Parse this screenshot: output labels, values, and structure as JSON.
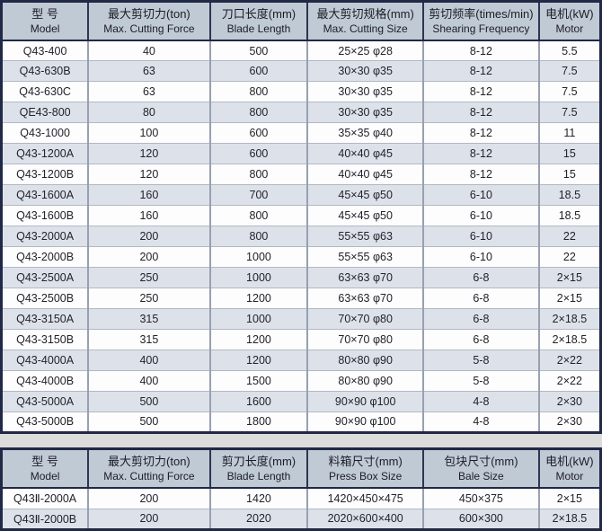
{
  "colors": {
    "page_background": "#dcdcdc",
    "table_border_navy": "#202945",
    "header_background": "#c0cad5",
    "row_background": "#fdfdfe",
    "row_alt_background": "#dde2ea",
    "grid_vertical": "#98a0b0",
    "grid_horizontal": "#b2b8c2",
    "text": "#22222a"
  },
  "table1": {
    "headers": [
      {
        "zh": "型 号",
        "en": "Model"
      },
      {
        "zh": "最大剪切力(ton)",
        "en": "Max. Cutting Force"
      },
      {
        "zh": "刀口长度(mm)",
        "en": "Blade Length"
      },
      {
        "zh": "最大剪切规格(mm)",
        "en": "Max. Cutting Size"
      },
      {
        "zh": "剪切频率(times/min)",
        "en": "Shearing Frequency"
      },
      {
        "zh": "电机(kW)",
        "en": "Motor"
      }
    ],
    "rows": [
      [
        "Q43-400",
        "40",
        "500",
        "25×25 φ28",
        "8-12",
        "5.5"
      ],
      [
        "Q43-630B",
        "63",
        "600",
        "30×30 φ35",
        "8-12",
        "7.5"
      ],
      [
        "Q43-630C",
        "63",
        "800",
        "30×30 φ35",
        "8-12",
        "7.5"
      ],
      [
        "QE43-800",
        "80",
        "800",
        "30×30 φ35",
        "8-12",
        "7.5"
      ],
      [
        "Q43-1000",
        "100",
        "600",
        "35×35 φ40",
        "8-12",
        "11"
      ],
      [
        "Q43-1200A",
        "120",
        "600",
        "40×40 φ45",
        "8-12",
        "15"
      ],
      [
        "Q43-1200B",
        "120",
        "800",
        "40×40 φ45",
        "8-12",
        "15"
      ],
      [
        "Q43-1600A",
        "160",
        "700",
        "45×45 φ50",
        "6-10",
        "18.5"
      ],
      [
        "Q43-1600B",
        "160",
        "800",
        "45×45 φ50",
        "6-10",
        "18.5"
      ],
      [
        "Q43-2000A",
        "200",
        "800",
        "55×55 φ63",
        "6-10",
        "22"
      ],
      [
        "Q43-2000B",
        "200",
        "1000",
        "55×55 φ63",
        "6-10",
        "22"
      ],
      [
        "Q43-2500A",
        "250",
        "1000",
        "63×63 φ70",
        "6-8",
        "2×15"
      ],
      [
        "Q43-2500B",
        "250",
        "1200",
        "63×63 φ70",
        "6-8",
        "2×15"
      ],
      [
        "Q43-3150A",
        "315",
        "1000",
        "70×70 φ80",
        "6-8",
        "2×18.5"
      ],
      [
        "Q43-3150B",
        "315",
        "1200",
        "70×70 φ80",
        "6-8",
        "2×18.5"
      ],
      [
        "Q43-4000A",
        "400",
        "1200",
        "80×80 φ90",
        "5-8",
        "2×22"
      ],
      [
        "Q43-4000B",
        "400",
        "1500",
        "80×80 φ90",
        "5-8",
        "2×22"
      ],
      [
        "Q43-5000A",
        "500",
        "1600",
        "90×90 φ100",
        "4-8",
        "2×30"
      ],
      [
        "Q43-5000B",
        "500",
        "1800",
        "90×90 φ100",
        "4-8",
        "2×30"
      ]
    ]
  },
  "table2": {
    "headers": [
      {
        "zh": "型 号",
        "en": "Model"
      },
      {
        "zh": "最大剪切力(ton)",
        "en": "Max. Cutting Force"
      },
      {
        "zh": "剪刀长度(mm)",
        "en": "Blade Length"
      },
      {
        "zh": "料箱尺寸(mm)",
        "en": "Press Box Size"
      },
      {
        "zh": "包块尺寸(mm)",
        "en": "Bale Size"
      },
      {
        "zh": "电机(kW)",
        "en": "Motor"
      }
    ],
    "rows": [
      [
        "Q43Ⅱ-2000A",
        "200",
        "1420",
        "1420×450×475",
        "450×375",
        "2×15"
      ],
      [
        "Q43Ⅱ-2000B",
        "200",
        "2020",
        "2020×600×400",
        "600×300",
        "2×18.5"
      ]
    ]
  }
}
